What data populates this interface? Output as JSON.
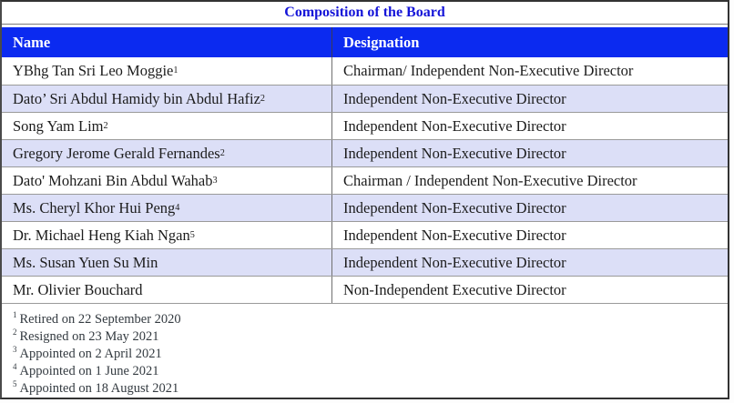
{
  "title": "Composition of the Board",
  "table": {
    "columns": [
      "Name",
      "Designation"
    ],
    "rows": [
      {
        "name": "YBhg Tan Sri Leo Moggie",
        "name_sup": "1",
        "designation": "Chairman/ Independent Non-Executive Director"
      },
      {
        "name": "Dato’ Sri Abdul Hamidy bin Abdul Hafiz",
        "name_sup": "2",
        "designation": "Independent Non-Executive Director"
      },
      {
        "name": "Song Yam Lim",
        "name_sup": "2",
        "designation": "Independent Non-Executive Director"
      },
      {
        "name": "Gregory Jerome Gerald Fernandes",
        "name_sup": "2",
        "designation": "Independent Non-Executive Director"
      },
      {
        "name": "Dato' Mohzani Bin Abdul Wahab",
        "name_sup": "3",
        "designation": "Chairman / Independent Non-Executive Director"
      },
      {
        "name": "Ms. Cheryl Khor Hui Peng",
        "name_sup": "4",
        "designation": "Independent Non-Executive Director"
      },
      {
        "name": "Dr. Michael Heng Kiah Ngan",
        "name_sup": "5",
        "designation": "Independent Non-Executive Director"
      },
      {
        "name": "Ms. Susan Yuen Su Min",
        "name_sup": "",
        "designation": "Independent Non-Executive Director"
      },
      {
        "name": "Mr. Olivier Bouchard",
        "name_sup": "",
        "designation": "Non-Independent Executive Director"
      }
    ]
  },
  "footnotes": [
    {
      "sup": "1",
      "text": "Retired on 22 September 2020"
    },
    {
      "sup": "2",
      "text": "Resigned on 23 May 2021"
    },
    {
      "sup": "3",
      "text": "Appointed on 2 April 2021"
    },
    {
      "sup": "4",
      "text": "Appointed on 1 June 2021"
    },
    {
      "sup": "5",
      "text": "Appointed on 18 August 2021"
    }
  ],
  "colors": {
    "header_bg": "#0b2af0",
    "title_text": "#1414d8",
    "alt_row_bg": "#dcdff7"
  }
}
